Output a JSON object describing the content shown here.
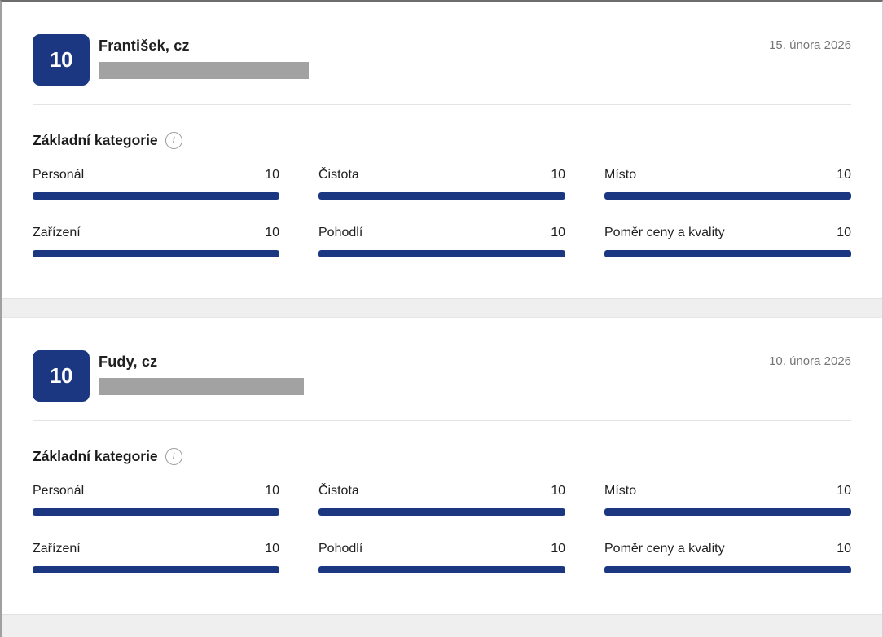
{
  "colors": {
    "accent": "#1b3781",
    "redacted": "#a2a2a2",
    "datecolor": "#757575"
  },
  "section_title": "Základní kategorie",
  "info_icon_glyph": "i",
  "reviews": [
    {
      "score": "10",
      "name": "František, cz",
      "date": "15. února 2026",
      "categories": [
        {
          "label": "Personál",
          "value": 10
        },
        {
          "label": "Čistota",
          "value": 10
        },
        {
          "label": "Místo",
          "value": 10
        },
        {
          "label": "Zařízení",
          "value": 10
        },
        {
          "label": "Pohodlí",
          "value": 10
        },
        {
          "label": "Poměr ceny a kvality",
          "value": 10
        }
      ]
    },
    {
      "score": "10",
      "name": "Fudy, cz",
      "date": "10. února 2026",
      "categories": [
        {
          "label": "Personál",
          "value": 10
        },
        {
          "label": "Čistota",
          "value": 10
        },
        {
          "label": "Místo",
          "value": 10
        },
        {
          "label": "Zařízení",
          "value": 10
        },
        {
          "label": "Pohodlí",
          "value": 10
        },
        {
          "label": "Poměr ceny a kvality",
          "value": 10
        }
      ]
    }
  ]
}
